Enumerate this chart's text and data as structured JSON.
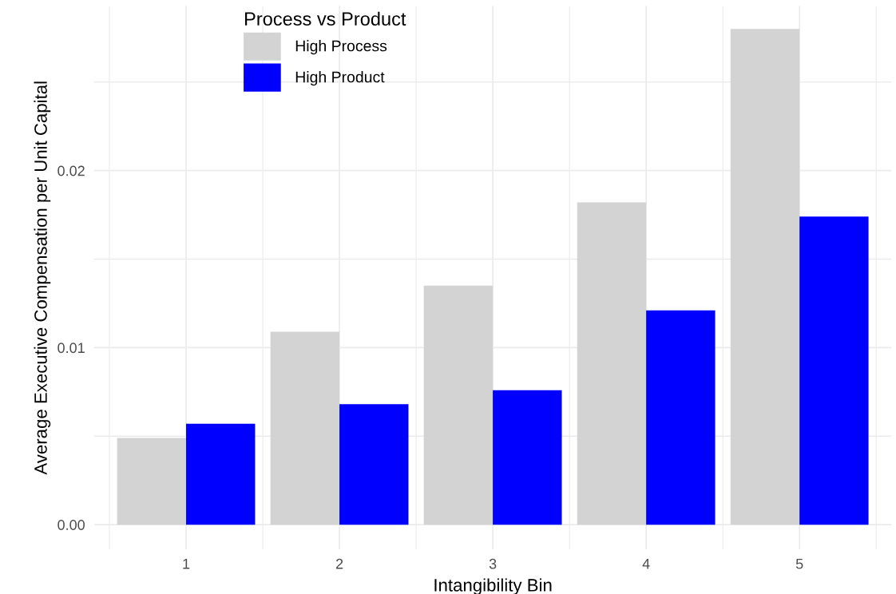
{
  "chart_data": {
    "type": "bar",
    "xlabel": "Intangibility Bin",
    "ylabel": "Average Executive Compensation per Unit Capital",
    "legend_title": "Process vs Product",
    "categories": [
      "1",
      "2",
      "3",
      "4",
      "5"
    ],
    "series": [
      {
        "name": "High Process",
        "color": "#d3d3d3",
        "values": [
          0.0049,
          0.0109,
          0.0135,
          0.0182,
          0.028
        ]
      },
      {
        "name": "High Product",
        "color": "#0000ff",
        "values": [
          0.0057,
          0.0068,
          0.0076,
          0.0121,
          0.0174
        ]
      }
    ],
    "ylim": [
      -0.0014,
      0.0293
    ],
    "yticks": [
      {
        "value": 0,
        "label": "0.00"
      },
      {
        "value": 0.005,
        "label": null
      },
      {
        "value": 0.01,
        "label": "0.01"
      },
      {
        "value": 0.015,
        "label": null
      },
      {
        "value": 0.02,
        "label": "0.02"
      },
      {
        "value": 0.025,
        "label": null
      }
    ],
    "grid": true,
    "legend": "top left"
  }
}
